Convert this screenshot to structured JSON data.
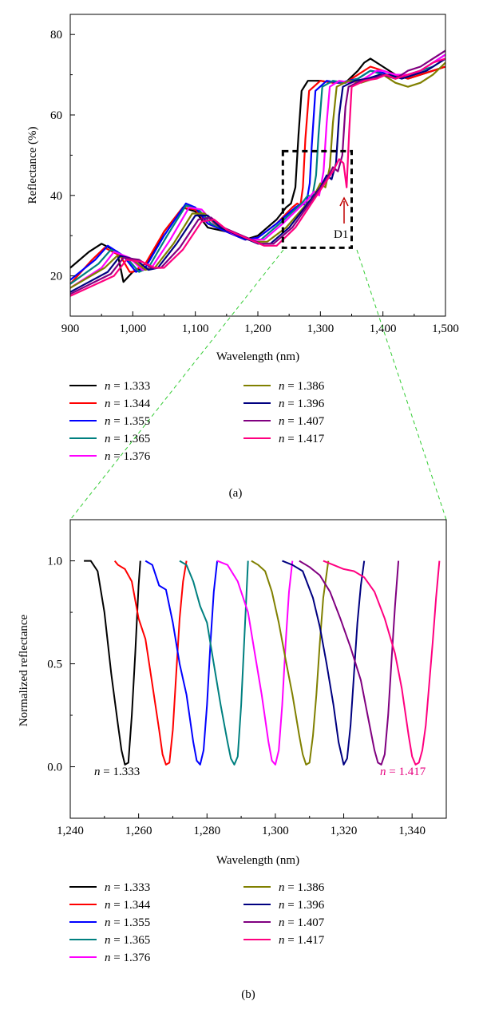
{
  "chart_data": [
    {
      "type": "line",
      "panel_label": "(a)",
      "xlabel": "Wavelength (nm)",
      "ylabel": "Reflectance (%)",
      "xlim": [
        900,
        1500
      ],
      "ylim": [
        10,
        85
      ],
      "xticks": [
        900,
        1000,
        1100,
        1200,
        1300,
        1400,
        1500
      ],
      "xtick_labels": [
        "900",
        "1,000",
        "1,100",
        "1,200",
        "1,300",
        "1,400",
        "1,500"
      ],
      "yticks": [
        20,
        40,
        60,
        80
      ],
      "ytick_labels": [
        "20",
        "40",
        "60",
        "80"
      ],
      "annotation": "D1",
      "inset_box_x": [
        1240,
        1350
      ],
      "inset_box_y": [
        27,
        51
      ],
      "legend_placement": "bottom, two columns",
      "legend_prefix": "n",
      "legend_values": [
        "= 1.333",
        "= 1.344",
        "= 1.355",
        "= 1.365",
        "= 1.376",
        "= 1.386",
        "= 1.396",
        "= 1.407",
        "= 1.417"
      ],
      "series": [
        {
          "color": "#000000",
          "x": [
            900,
            930,
            950,
            975,
            985,
            1000,
            1020,
            1050,
            1080,
            1100,
            1120,
            1150,
            1180,
            1200,
            1230,
            1245,
            1253,
            1260,
            1265,
            1270,
            1280,
            1300,
            1320,
            1340,
            1360,
            1370,
            1380,
            1400,
            1420,
            1440,
            1460,
            1480,
            1500
          ],
          "y": [
            22,
            26,
            28,
            26,
            18.5,
            21,
            22,
            31,
            37,
            36,
            32,
            31,
            29,
            30,
            34,
            37,
            38,
            42,
            55,
            66,
            68.5,
            68.5,
            68,
            68,
            71,
            73,
            74,
            72,
            70,
            69,
            70,
            71,
            72
          ]
        },
        {
          "color": "#ff0000",
          "x": [
            900,
            935,
            955,
            980,
            995,
            1000,
            1020,
            1050,
            1080,
            1100,
            1120,
            1150,
            1180,
            1200,
            1230,
            1255,
            1263,
            1268,
            1272,
            1276,
            1282,
            1300,
            1320,
            1340,
            1360,
            1380,
            1400,
            1420,
            1440,
            1460,
            1480,
            1500
          ],
          "y": [
            18,
            24,
            27,
            25,
            21,
            21,
            23,
            31,
            37,
            36.5,
            33,
            31,
            29,
            29.5,
            33,
            37,
            38,
            37.5,
            42,
            54,
            66,
            68.5,
            68,
            68,
            70,
            72,
            71,
            70,
            69,
            70,
            71,
            72
          ]
        },
        {
          "color": "#0000ff",
          "x": [
            900,
            940,
            960,
            985,
            1005,
            1020,
            1050,
            1085,
            1100,
            1120,
            1150,
            1180,
            1200,
            1230,
            1260,
            1270,
            1277,
            1283,
            1286,
            1292,
            1310,
            1330,
            1360,
            1380,
            1400,
            1420,
            1440,
            1460,
            1480,
            1500
          ],
          "y": [
            19,
            24,
            27.5,
            25,
            21,
            22,
            30,
            38,
            37,
            33,
            31,
            29,
            29.5,
            33,
            37,
            38,
            37.5,
            43,
            52,
            66,
            68.5,
            68,
            69,
            71,
            70.5,
            69,
            70,
            71,
            73,
            75
          ]
        },
        {
          "color": "#008080",
          "x": [
            900,
            945,
            965,
            990,
            1010,
            1025,
            1055,
            1085,
            1105,
            1125,
            1155,
            1185,
            1205,
            1235,
            1270,
            1280,
            1287,
            1293,
            1297,
            1303,
            1320,
            1340,
            1360,
            1380,
            1400,
            1420,
            1440,
            1460,
            1480,
            1500
          ],
          "y": [
            18,
            23,
            26.5,
            24.5,
            21,
            22,
            30,
            37.5,
            36.5,
            33,
            31,
            29,
            29,
            33,
            38,
            40,
            39.5,
            45,
            55,
            67,
            68.5,
            68,
            69,
            71,
            70,
            69,
            70,
            71,
            72,
            74
          ]
        },
        {
          "color": "#ff00ff",
          "x": [
            900,
            950,
            970,
            995,
            1015,
            1030,
            1060,
            1090,
            1110,
            1130,
            1160,
            1190,
            1210,
            1240,
            1280,
            1290,
            1298,
            1305,
            1310,
            1315,
            1330,
            1350,
            1370,
            1390,
            1400,
            1420,
            1440,
            1460,
            1480,
            1500
          ],
          "y": [
            17,
            22,
            26,
            24.5,
            21.5,
            22,
            29,
            37,
            36.5,
            33,
            30.5,
            29,
            29,
            33,
            39,
            41,
            40,
            46,
            58,
            67,
            68.5,
            68,
            69,
            71,
            71,
            70,
            70,
            71,
            73,
            75
          ]
        },
        {
          "color": "#808000",
          "x": [
            900,
            955,
            975,
            1000,
            1020,
            1035,
            1065,
            1095,
            1115,
            1135,
            1165,
            1195,
            1215,
            1245,
            1290,
            1300,
            1308,
            1315,
            1320,
            1326,
            1345,
            1365,
            1385,
            1400,
            1420,
            1440,
            1460,
            1480,
            1500
          ],
          "y": [
            17,
            22,
            25,
            24,
            21.5,
            22,
            28,
            35.5,
            35.5,
            32.5,
            30.5,
            28.5,
            28.5,
            32,
            40,
            43,
            42,
            47,
            58,
            67,
            68.5,
            68,
            69,
            70,
            68,
            67,
            68,
            70,
            73
          ]
        },
        {
          "color": "#000080",
          "x": [
            900,
            960,
            980,
            1005,
            1025,
            1040,
            1070,
            1100,
            1120,
            1140,
            1170,
            1200,
            1220,
            1250,
            1300,
            1310,
            1318,
            1325,
            1330,
            1336,
            1355,
            1375,
            1395,
            1410,
            1430,
            1450,
            1470,
            1490,
            1500
          ],
          "y": [
            16,
            21,
            25,
            24,
            21.5,
            22,
            28,
            35,
            35,
            32,
            30,
            28,
            28,
            32,
            42,
            45,
            44,
            48,
            60,
            67,
            68.5,
            69,
            70,
            70,
            69,
            70,
            71,
            73,
            74
          ]
        },
        {
          "color": "#800080",
          "x": [
            900,
            965,
            985,
            1010,
            1030,
            1045,
            1075,
            1105,
            1125,
            1145,
            1175,
            1205,
            1225,
            1255,
            1310,
            1320,
            1328,
            1335,
            1340,
            1345,
            1365,
            1385,
            1400,
            1420,
            1440,
            1460,
            1480,
            1500
          ],
          "y": [
            15.5,
            20.5,
            24.5,
            24,
            22,
            22,
            27,
            34,
            34.5,
            32,
            30,
            28,
            28,
            32,
            44,
            47,
            46,
            50,
            62,
            67,
            68.5,
            69,
            70,
            69,
            71,
            72,
            74,
            76
          ]
        },
        {
          "color": "#ff0080",
          "x": [
            900,
            970,
            990,
            1015,
            1035,
            1050,
            1080,
            1110,
            1130,
            1150,
            1180,
            1210,
            1230,
            1260,
            1320,
            1330,
            1337,
            1342,
            1346,
            1350,
            1370,
            1390,
            1405,
            1420,
            1440,
            1460,
            1480,
            1500
          ],
          "y": [
            15,
            20,
            24,
            23.5,
            22,
            22,
            26.5,
            33.5,
            34,
            31.5,
            29.5,
            27.5,
            27.5,
            32,
            46,
            49,
            48,
            42,
            56,
            67,
            68.5,
            69,
            70,
            69,
            70,
            71,
            73,
            74
          ]
        }
      ]
    },
    {
      "type": "line",
      "panel_label": "(b)",
      "xlabel": "Wavelength (nm)",
      "ylabel": "Normalized reflectance",
      "xlim": [
        1240,
        1350
      ],
      "ylim": [
        -0.25,
        1.2
      ],
      "xticks": [
        1240,
        1260,
        1280,
        1300,
        1320,
        1340
      ],
      "xtick_labels": [
        "1,240",
        "1,260",
        "1,280",
        "1,300",
        "1,320",
        "1,340"
      ],
      "yticks": [
        0.0,
        0.5,
        1.0
      ],
      "ytick_labels": [
        "0.0",
        "0.5",
        "1.0"
      ],
      "annotations": [
        {
          "prefix": "n",
          "text": "= 1.333",
          "color": "#000000"
        },
        {
          "prefix": "n",
          "text": "= 1.417",
          "color": "#e6007e"
        }
      ],
      "legend_placement": "bottom, two columns",
      "legend_prefix": "n",
      "legend_values": [
        "= 1.333",
        "= 1.344",
        "= 1.355",
        "= 1.365",
        "= 1.376",
        "= 1.386",
        "= 1.396",
        "= 1.407",
        "= 1.417"
      ],
      "series": [
        {
          "color": "#000000",
          "x": [
            1244,
            1246,
            1248,
            1250,
            1252,
            1254,
            1255,
            1256,
            1257,
            1258,
            1259,
            1260,
            1260.5
          ],
          "y": [
            1.0,
            1.0,
            0.95,
            0.75,
            0.45,
            0.2,
            0.08,
            0.01,
            0.02,
            0.25,
            0.55,
            0.88,
            1.0
          ]
        },
        {
          "color": "#ff0000",
          "x": [
            1253,
            1254,
            1256,
            1258,
            1260,
            1262,
            1264,
            1266,
            1267,
            1268,
            1269,
            1270,
            1271,
            1272,
            1273,
            1274
          ],
          "y": [
            1.0,
            0.98,
            0.96,
            0.9,
            0.72,
            0.62,
            0.4,
            0.18,
            0.06,
            0.01,
            0.02,
            0.18,
            0.45,
            0.72,
            0.9,
            1.0
          ]
        },
        {
          "color": "#0000ff",
          "x": [
            1262,
            1264,
            1266,
            1268,
            1270,
            1272,
            1274,
            1276,
            1277,
            1278,
            1279,
            1280,
            1281,
            1282,
            1283
          ],
          "y": [
            1.0,
            0.98,
            0.88,
            0.86,
            0.7,
            0.5,
            0.35,
            0.12,
            0.03,
            0.01,
            0.08,
            0.3,
            0.6,
            0.85,
            1.0
          ]
        },
        {
          "color": "#008080",
          "x": [
            1272,
            1274,
            1276,
            1278,
            1280,
            1282,
            1284,
            1286,
            1287,
            1288,
            1289,
            1290,
            1291,
            1292
          ],
          "y": [
            1.0,
            0.98,
            0.9,
            0.78,
            0.7,
            0.5,
            0.3,
            0.12,
            0.04,
            0.01,
            0.05,
            0.3,
            0.65,
            1.0
          ]
        },
        {
          "color": "#ff00ff",
          "x": [
            1283,
            1286,
            1289,
            1292,
            1294,
            1296,
            1298,
            1299,
            1300,
            1301,
            1302,
            1303,
            1304,
            1305
          ],
          "y": [
            1.0,
            0.98,
            0.9,
            0.75,
            0.55,
            0.35,
            0.12,
            0.03,
            0.01,
            0.08,
            0.3,
            0.6,
            0.85,
            1.0
          ]
        },
        {
          "color": "#808000",
          "x": [
            1293,
            1295,
            1297,
            1299,
            1301,
            1303,
            1305,
            1307,
            1308,
            1309,
            1310,
            1311,
            1312,
            1313,
            1314,
            1315.5
          ],
          "y": [
            1.0,
            0.98,
            0.95,
            0.85,
            0.7,
            0.52,
            0.35,
            0.15,
            0.06,
            0.01,
            0.02,
            0.15,
            0.35,
            0.6,
            0.82,
            1.0
          ]
        },
        {
          "color": "#000080",
          "x": [
            1302,
            1305,
            1308,
            1311,
            1313,
            1315,
            1317,
            1318.5,
            1320,
            1321,
            1322,
            1323,
            1324,
            1325,
            1326
          ],
          "y": [
            1.0,
            0.98,
            0.95,
            0.82,
            0.68,
            0.5,
            0.3,
            0.12,
            0.01,
            0.04,
            0.2,
            0.45,
            0.7,
            0.88,
            1.0
          ]
        },
        {
          "color": "#800080",
          "x": [
            1307,
            1310,
            1313,
            1316,
            1319,
            1322,
            1325,
            1327,
            1329,
            1330,
            1331,
            1332,
            1333,
            1334,
            1335,
            1336
          ],
          "y": [
            1.0,
            0.97,
            0.93,
            0.85,
            0.72,
            0.58,
            0.42,
            0.25,
            0.08,
            0.02,
            0.01,
            0.06,
            0.25,
            0.52,
            0.78,
            1.0
          ]
        },
        {
          "color": "#ff0080",
          "x": [
            1314,
            1317,
            1320,
            1323,
            1326,
            1329,
            1332,
            1335,
            1337,
            1339,
            1340,
            1341,
            1342,
            1343,
            1344,
            1345,
            1346,
            1347,
            1348
          ],
          "y": [
            1.0,
            0.98,
            0.96,
            0.95,
            0.92,
            0.85,
            0.72,
            0.55,
            0.38,
            0.15,
            0.05,
            0.01,
            0.02,
            0.08,
            0.2,
            0.4,
            0.6,
            0.82,
            1.0
          ]
        }
      ]
    }
  ]
}
